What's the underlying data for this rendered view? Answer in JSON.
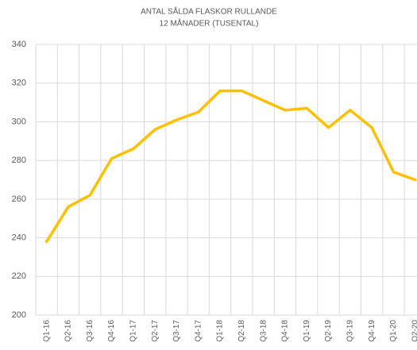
{
  "chart_data": {
    "type": "line",
    "title": "ANTAL SÅLDA FLASKOR RULLANDE",
    "subtitle": "12 MÅNADER (TUSENTAL)",
    "categories": [
      "Q1-16",
      "Q2-16",
      "Q3-16",
      "Q4-16",
      "Q1-17",
      "Q2-17",
      "Q3-17",
      "Q4-17",
      "Q1-18",
      "Q2-18",
      "Q3-18",
      "Q4-18",
      "Q1-19",
      "Q2-19",
      "Q3-19",
      "Q4-19",
      "Q1-20",
      "Q2-20"
    ],
    "values": [
      238,
      256,
      262,
      281,
      286,
      296,
      301,
      305,
      316,
      316,
      311,
      306,
      307,
      297,
      306,
      297,
      274,
      270
    ],
    "color": "#ffc000",
    "ylim": [
      200,
      340
    ],
    "yticks": [
      200,
      220,
      240,
      260,
      280,
      300,
      320,
      340
    ],
    "grid": true
  }
}
